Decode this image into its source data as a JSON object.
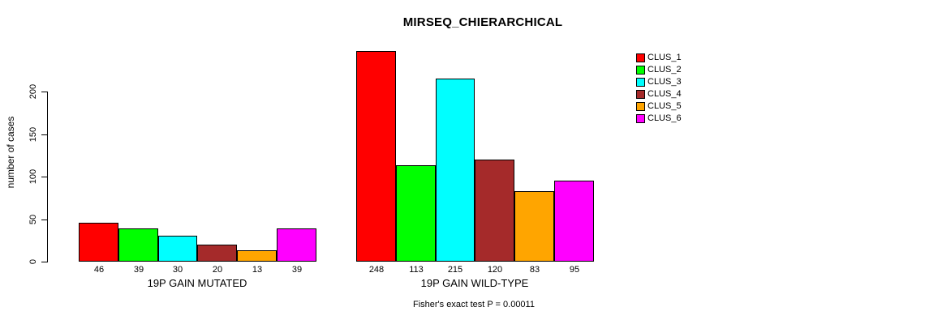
{
  "chart_data": {
    "type": "bar",
    "title": "MIRSEQ_CHIERARCHICAL",
    "ylabel": "number of cases",
    "xlabel": "",
    "yticks": [
      0,
      50,
      100,
      150,
      200
    ],
    "ylim": [
      0,
      250
    ],
    "grid": false,
    "legend_position": "top-right",
    "categories": [
      "19P GAIN MUTATED",
      "19P GAIN WILD-TYPE"
    ],
    "series": [
      {
        "name": "CLUS_1",
        "color": "#FF0000",
        "values": [
          46,
          248
        ]
      },
      {
        "name": "CLUS_2",
        "color": "#00FF00",
        "values": [
          39,
          113
        ]
      },
      {
        "name": "CLUS_3",
        "color": "#00FFFF",
        "values": [
          30,
          215
        ]
      },
      {
        "name": "CLUS_4",
        "color": "#A52A2A",
        "values": [
          20,
          120
        ]
      },
      {
        "name": "CLUS_5",
        "color": "#FFA500",
        "values": [
          13,
          83
        ]
      },
      {
        "name": "CLUS_6",
        "color": "#FF00FF",
        "values": [
          39,
          95
        ]
      }
    ],
    "bar_value_labels_shown": true,
    "annotation": "Fisher's exact test P = 0.00011",
    "text_color": "#000000",
    "background_color": "#FFFFFF"
  }
}
